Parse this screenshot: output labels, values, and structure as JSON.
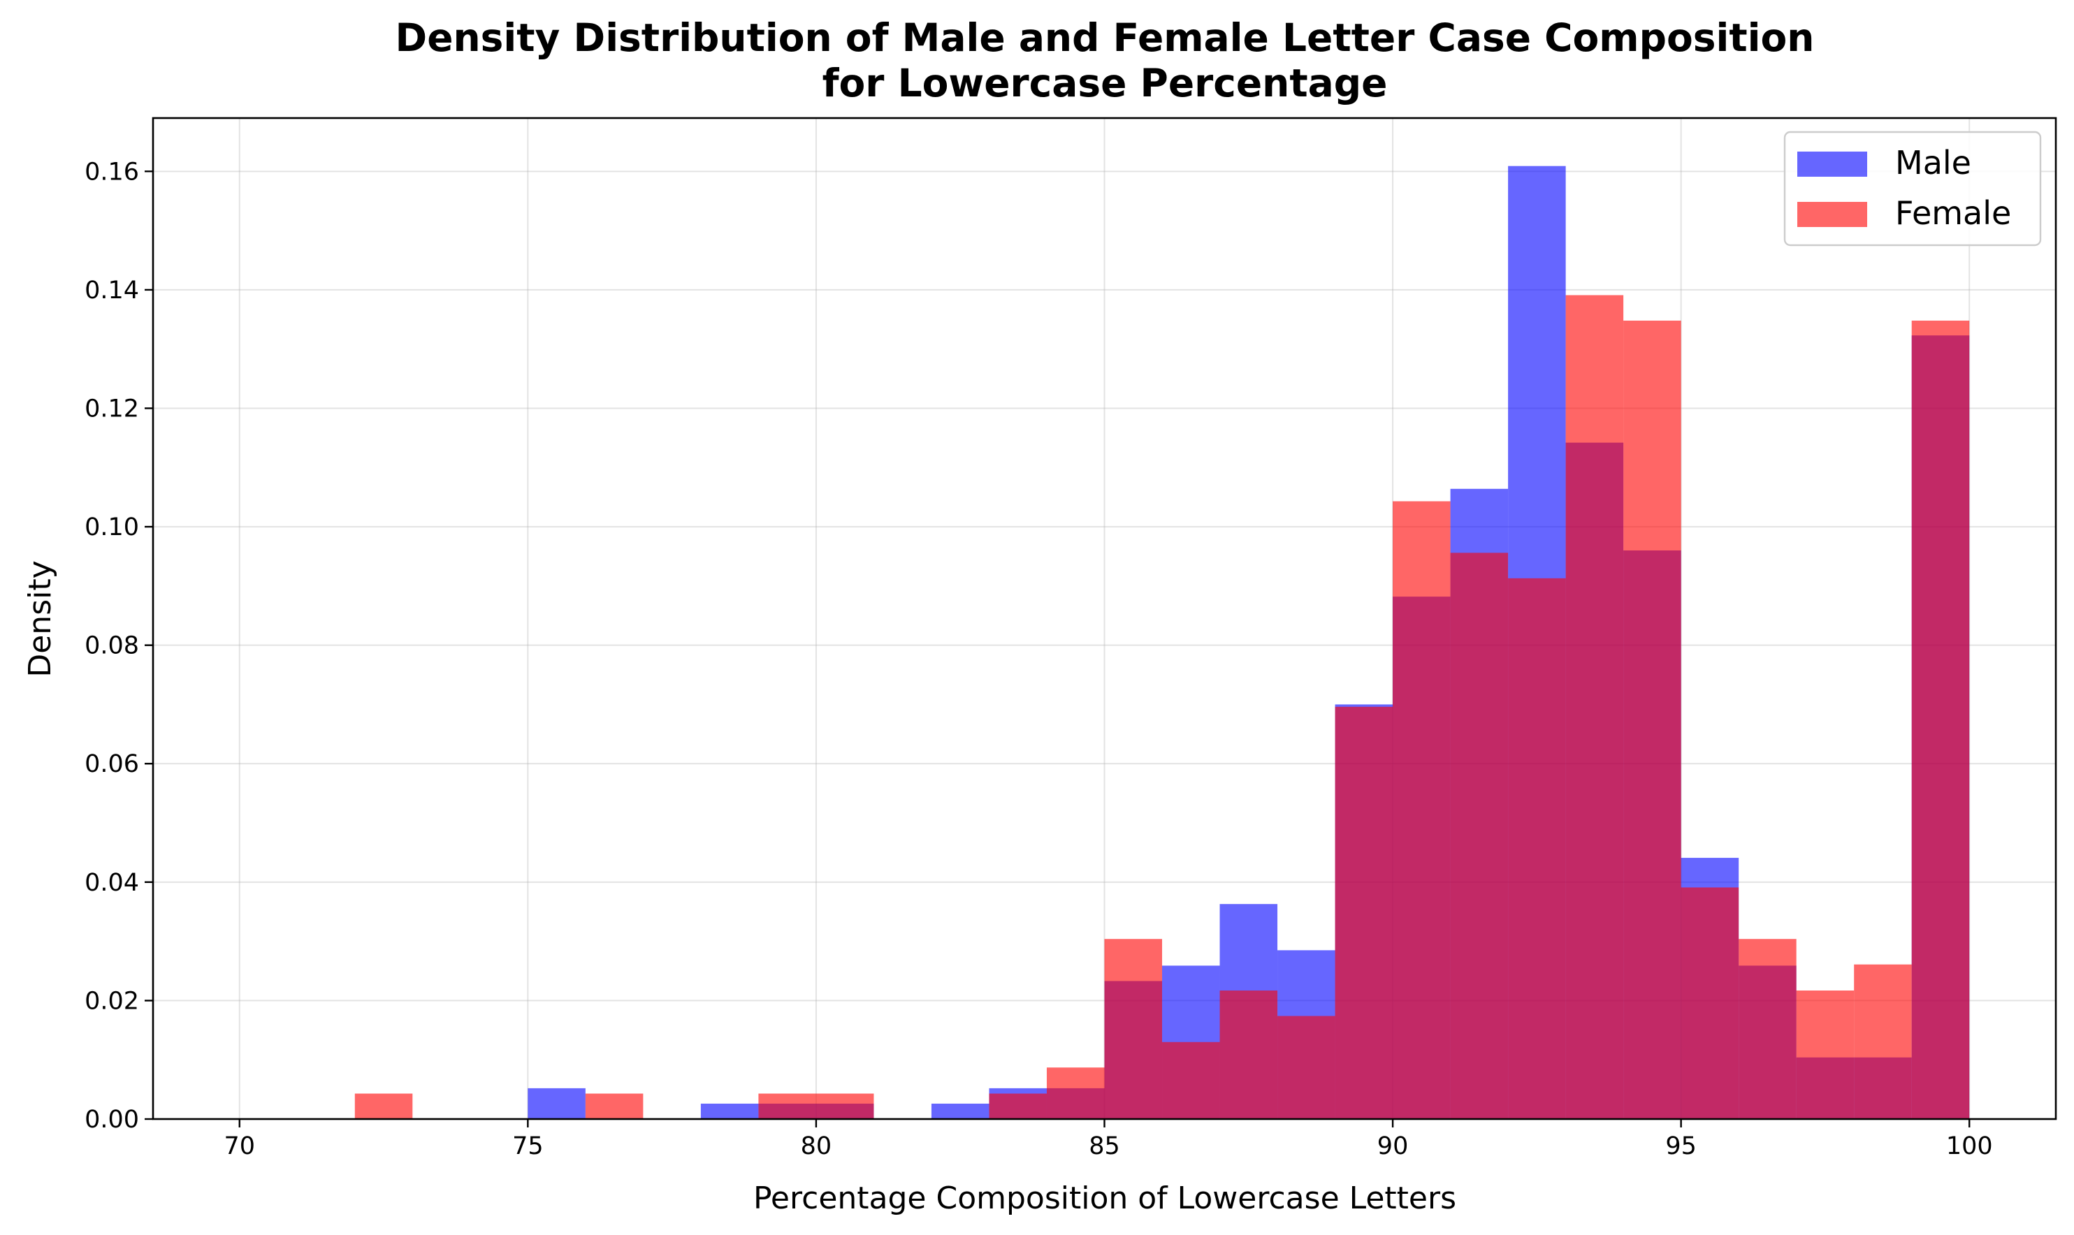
{
  "chart_data": {
    "type": "bar",
    "title_line1": "Density Distribution of Male and Female Letter Case Composition",
    "title_line2": "for Lowercase Percentage",
    "xlabel": "Percentage Composition of Lowercase Letters",
    "ylabel": "Density",
    "xlim": [
      68.5,
      101.5
    ],
    "ylim": [
      0,
      0.169
    ],
    "xticks": [
      70,
      75,
      80,
      85,
      90,
      95,
      100
    ],
    "yticks": [
      "0.00",
      "0.02",
      "0.04",
      "0.06",
      "0.08",
      "0.10",
      "0.12",
      "0.14",
      "0.16"
    ],
    "grid": true,
    "legend_position": "top-right",
    "bin_width": 1,
    "bins_start": [
      70,
      71,
      72,
      73,
      74,
      75,
      76,
      77,
      78,
      79,
      80,
      81,
      82,
      83,
      84,
      85,
      86,
      87,
      88,
      89,
      90,
      91,
      92,
      93,
      94,
      95,
      96,
      97,
      98,
      99
    ],
    "series": [
      {
        "name": "Male",
        "color": "#0000ff",
        "alpha": 0.6,
        "values": [
          0,
          0,
          0,
          0,
          0,
          0.0052,
          0,
          0,
          0.0026,
          0.0026,
          0.0026,
          0,
          0.0026,
          0.0052,
          0.0052,
          0.0233,
          0.0259,
          0.0363,
          0.0285,
          0.07,
          0.0882,
          0.1064,
          0.1609,
          0.1142,
          0.096,
          0.0441,
          0.0259,
          0.0104,
          0.0104,
          0.1323
        ]
      },
      {
        "name": "Female",
        "color": "#ff0000",
        "alpha": 0.6,
        "values": [
          0,
          0,
          0.0043,
          0,
          0,
          0,
          0.0043,
          0,
          0,
          0.0043,
          0.0043,
          0,
          0,
          0.0043,
          0.0087,
          0.0304,
          0.013,
          0.0217,
          0.0174,
          0.0696,
          0.1043,
          0.0956,
          0.0913,
          0.1391,
          0.1348,
          0.0391,
          0.0304,
          0.0217,
          0.0261,
          0.1348
        ]
      }
    ]
  }
}
